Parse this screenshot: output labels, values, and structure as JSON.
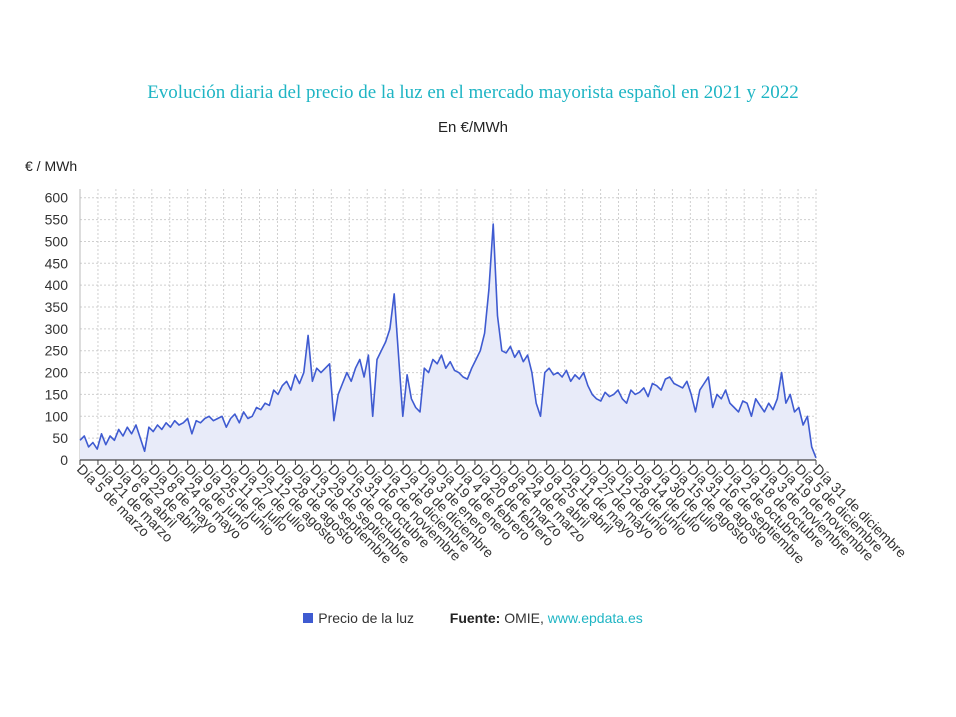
{
  "chart_data": {
    "type": "area",
    "title": "Evolución diaria del precio de la luz en el mercado mayorista español en 2021 y 2022",
    "subtitle": "En €/MWh",
    "ylabel": "€ / MWh",
    "ylim": [
      0,
      620
    ],
    "yticks": [
      0,
      50,
      100,
      150,
      200,
      250,
      300,
      350,
      400,
      450,
      500,
      550,
      600
    ],
    "grid": true,
    "legend_position": "bottom",
    "x_tick_labels": [
      "Día 5 de marzo",
      "Día 21 de marzo",
      "Día 6 de abril",
      "Día 22 de abril",
      "Día 8 de mayo",
      "Día 24 de mayo",
      "Día 9 de junio",
      "Día 25 de junio",
      "Día 11 de julio",
      "Día 27 de julio",
      "Día 12 de agosto",
      "Día 28 de agosto",
      "Día 13 de septiembre",
      "Día 29 de septiembre",
      "Día 15 de octubre",
      "Día 31 de octubre",
      "Día 16 de noviembre",
      "Día 2 de diciembre",
      "Día 18 de diciembre",
      "Día 3 de enero",
      "Día 19 de enero",
      "Día 4 de febrero",
      "Día 20 de febrero",
      "Día 8 de marzo",
      "Día 24 de marzo",
      "Día 9 de abril",
      "Día 25 de abril",
      "Día 11 de mayo",
      "Día 27 de mayo",
      "Día 12 de junio",
      "Día 28 de junio",
      "Día 14 de julio",
      "Día 30 de julio",
      "Día 15 de agosto",
      "Día 31 de agosto",
      "Día 16 de septiembre",
      "Día 2 de octubre",
      "Día 18 de octubre",
      "Día 3 de noviembre",
      "Día 19 de noviembre",
      "Día 5 de diciembre",
      "Día 31 de diciembre"
    ],
    "series": [
      {
        "name": "Precio de la luz",
        "color": "#3f5bd1",
        "values": [
          45,
          55,
          30,
          40,
          25,
          60,
          35,
          55,
          45,
          70,
          55,
          75,
          60,
          80,
          50,
          20,
          75,
          65,
          80,
          70,
          85,
          75,
          90,
          80,
          85,
          95,
          60,
          90,
          85,
          95,
          100,
          90,
          95,
          100,
          75,
          95,
          105,
          85,
          110,
          95,
          100,
          120,
          115,
          130,
          125,
          160,
          150,
          170,
          180,
          160,
          195,
          175,
          200,
          285,
          180,
          210,
          200,
          210,
          220,
          90,
          150,
          175,
          200,
          180,
          210,
          230,
          190,
          240,
          100,
          230,
          250,
          270,
          300,
          380,
          240,
          100,
          195,
          140,
          120,
          110,
          210,
          200,
          230,
          220,
          240,
          210,
          225,
          205,
          200,
          190,
          185,
          210,
          230,
          250,
          290,
          390,
          540,
          330,
          250,
          245,
          260,
          235,
          250,
          225,
          240,
          200,
          130,
          100,
          200,
          210,
          195,
          200,
          190,
          205,
          180,
          195,
          185,
          200,
          170,
          150,
          140,
          135,
          155,
          145,
          150,
          160,
          140,
          130,
          160,
          150,
          155,
          165,
          145,
          175,
          170,
          160,
          185,
          190,
          175,
          170,
          165,
          180,
          150,
          110,
          160,
          175,
          190,
          120,
          150,
          140,
          160,
          130,
          120,
          110,
          135,
          130,
          100,
          140,
          125,
          110,
          130,
          115,
          140,
          200,
          130,
          150,
          110,
          120,
          80,
          100,
          30,
          5
        ]
      }
    ],
    "source_label": "Fuente:",
    "source_name": "OMIE,",
    "source_site": "www.epdata.es"
  }
}
